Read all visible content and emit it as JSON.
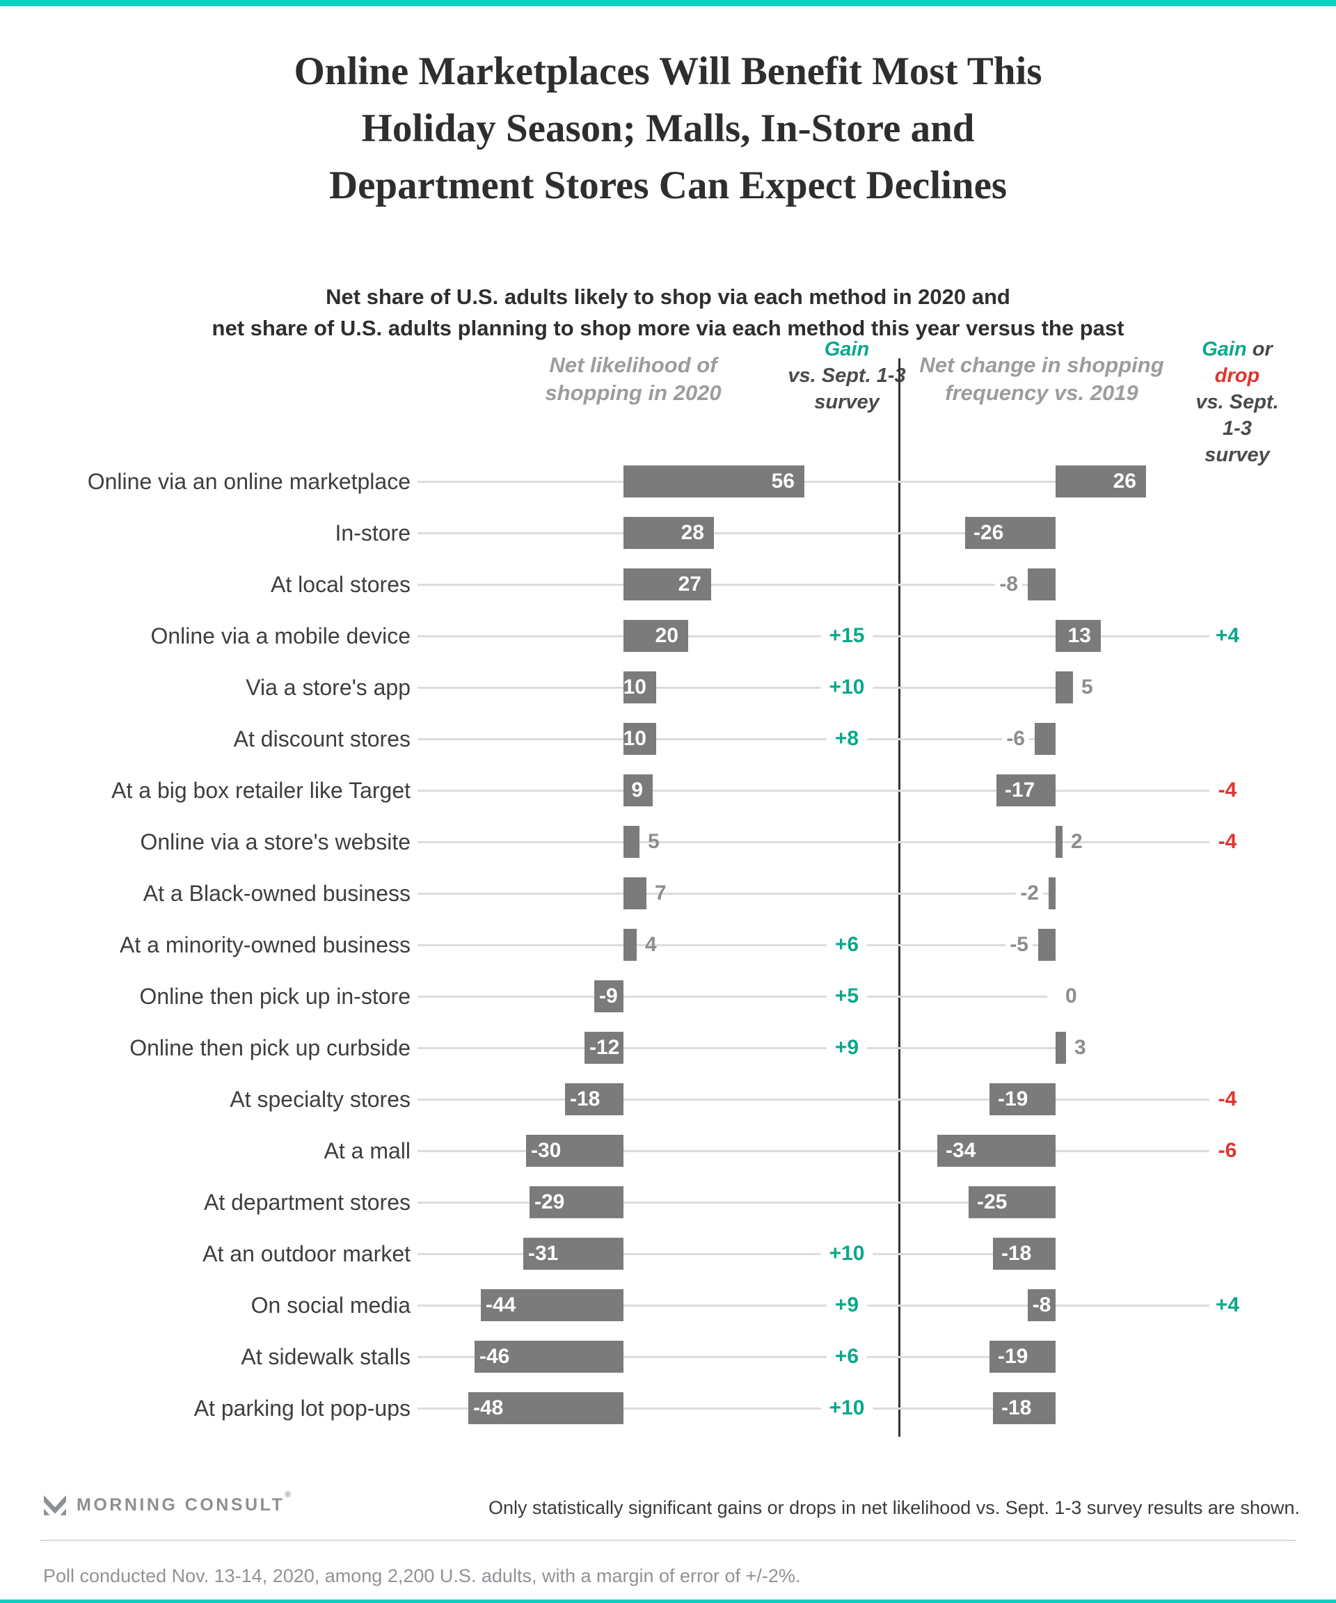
{
  "colors": {
    "accent_teal": "#0fd1c3",
    "gain_green": "#0aa88b",
    "drop_red": "#e13430",
    "bar_gray": "#7b7b7b",
    "grid_gray": "#dcdcdc",
    "label_dark": "#3e3e3e",
    "header_gray": "#9c9c9c"
  },
  "title": {
    "lines": [
      "Online Marketplaces Will Benefit Most This",
      "Holiday Season; Malls, In-Store and",
      "Department Stores Can Expect Declines"
    ]
  },
  "subtitle": {
    "lines": [
      "Net share of U.S. adults likely to shop via each method in 2020 and",
      "net share of U.S. adults planning to shop more via each method this year versus the past"
    ]
  },
  "columns": {
    "left_header": {
      "line1": "Net likelihood of",
      "line2": "shopping in 2020"
    },
    "left_gain_header": {
      "gain": "Gain",
      "line2": "vs. Sept. 1-3",
      "line3": "survey"
    },
    "right_header": {
      "line1": "Net change in shopping",
      "line2": "frequency vs. 2019"
    },
    "right_gain_header": {
      "gain": "Gain",
      "or": " or ",
      "drop": "drop",
      "line2": "vs. Sept. 1-3",
      "line3": "survey"
    }
  },
  "chart_data": {
    "type": "bar",
    "title": "Online Marketplaces Will Benefit Most This Holiday Season; Malls, In-Store and Department Stores Can Expect Declines",
    "series_labels": [
      "Net likelihood of shopping in 2020",
      "Gain vs. Sept. 1-3 survey",
      "Net change in shopping frequency vs. 2019",
      "Gain or drop vs. Sept. 1-3 survey"
    ],
    "rows": [
      {
        "label": "Online via an online marketplace",
        "net_likelihood": 56,
        "likelihood_gain": null,
        "net_change": 26,
        "change_gain": null,
        "left_value_inside": true,
        "right_value_inside": true
      },
      {
        "label": "In-store",
        "net_likelihood": 28,
        "likelihood_gain": null,
        "net_change": -26,
        "change_gain": null,
        "left_value_inside": true,
        "right_value_inside": true
      },
      {
        "label": "At local stores",
        "net_likelihood": 27,
        "likelihood_gain": null,
        "net_change": -8,
        "change_gain": null,
        "left_value_inside": true,
        "right_value_inside": false
      },
      {
        "label": "Online via a mobile device",
        "net_likelihood": 20,
        "likelihood_gain": 15,
        "net_change": 13,
        "change_gain": 4,
        "left_value_inside": true,
        "right_value_inside": true
      },
      {
        "label": "Via a store's app",
        "net_likelihood": 10,
        "likelihood_gain": 10,
        "net_change": 5,
        "change_gain": null,
        "left_value_inside": true,
        "right_value_inside": false
      },
      {
        "label": "At discount stores",
        "net_likelihood": 10,
        "likelihood_gain": 8,
        "net_change": -6,
        "change_gain": null,
        "left_value_inside": true,
        "right_value_inside": false
      },
      {
        "label": "At a big box retailer like Target",
        "net_likelihood": 9,
        "likelihood_gain": null,
        "net_change": -17,
        "change_gain": -4,
        "left_value_inside": true,
        "right_value_inside": true
      },
      {
        "label": "Online via a store's website",
        "net_likelihood": 5,
        "likelihood_gain": null,
        "net_change": 2,
        "change_gain": -4,
        "left_value_inside": false,
        "right_value_inside": false
      },
      {
        "label": "At a Black-owned business",
        "net_likelihood": 7,
        "likelihood_gain": null,
        "net_change": -2,
        "change_gain": null,
        "left_value_inside": false,
        "right_value_inside": false
      },
      {
        "label": "At a minority-owned business",
        "net_likelihood": 4,
        "likelihood_gain": 6,
        "net_change": -5,
        "change_gain": null,
        "left_value_inside": false,
        "right_value_inside": false
      },
      {
        "label": "Online then pick up in-store",
        "net_likelihood": -9,
        "likelihood_gain": 5,
        "net_change": 0,
        "change_gain": null,
        "left_value_inside": true,
        "right_value_inside": false
      },
      {
        "label": "Online then pick up curbside",
        "net_likelihood": -12,
        "likelihood_gain": 9,
        "net_change": 3,
        "change_gain": null,
        "left_value_inside": true,
        "right_value_inside": false
      },
      {
        "label": "At specialty stores",
        "net_likelihood": -18,
        "likelihood_gain": null,
        "net_change": -19,
        "change_gain": -4,
        "left_value_inside": true,
        "right_value_inside": true
      },
      {
        "label": "At a mall",
        "net_likelihood": -30,
        "likelihood_gain": null,
        "net_change": -34,
        "change_gain": -6,
        "left_value_inside": true,
        "right_value_inside": true
      },
      {
        "label": "At department stores",
        "net_likelihood": -29,
        "likelihood_gain": null,
        "net_change": -25,
        "change_gain": null,
        "left_value_inside": true,
        "right_value_inside": true
      },
      {
        "label": "At an outdoor market",
        "net_likelihood": -31,
        "likelihood_gain": 10,
        "net_change": -18,
        "change_gain": null,
        "left_value_inside": true,
        "right_value_inside": true
      },
      {
        "label": "On social media",
        "net_likelihood": -44,
        "likelihood_gain": 9,
        "net_change": -8,
        "change_gain": 4,
        "left_value_inside": true,
        "right_value_inside": true
      },
      {
        "label": "At sidewalk stalls",
        "net_likelihood": -46,
        "likelihood_gain": 6,
        "net_change": -19,
        "change_gain": null,
        "left_value_inside": true,
        "right_value_inside": true
      },
      {
        "label": "At parking lot pop-ups",
        "net_likelihood": -48,
        "likelihood_gain": 10,
        "net_change": -18,
        "change_gain": null,
        "left_value_inside": true,
        "right_value_inside": true
      }
    ]
  },
  "footer": {
    "logo_text": "MORNING CONSULT",
    "logo_reg": "®",
    "note": "Only statistically significant gains or drops in net likelihood vs. Sept. 1-3 survey results are shown.",
    "poll": "Poll conducted Nov. 13-14, 2020, among 2,200 U.S. adults, with a margin of error of +/-2%."
  }
}
